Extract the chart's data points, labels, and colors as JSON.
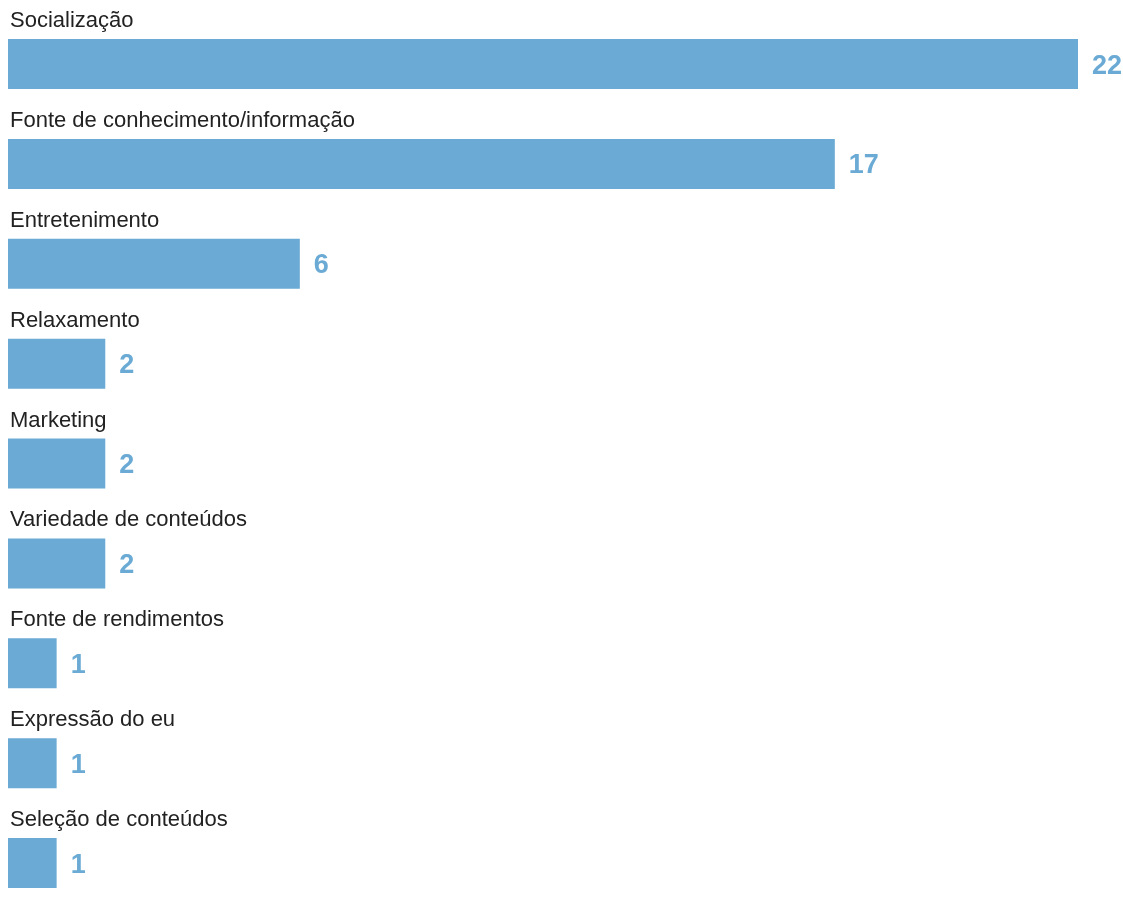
{
  "chart_data": {
    "type": "bar",
    "orientation": "horizontal",
    "data_labels": true,
    "color": "#6aaad4",
    "categories": [
      "Socialização",
      "Fonte de conhecimento/informação",
      "Entretenimento",
      "Relaxamento",
      "Marketing",
      "Variedade de conteúdos",
      "Fonte de rendimentos",
      "Expressão do eu",
      "Seleção de conteúdos"
    ],
    "values": [
      22,
      17,
      6,
      2,
      2,
      2,
      1,
      1,
      1
    ]
  }
}
